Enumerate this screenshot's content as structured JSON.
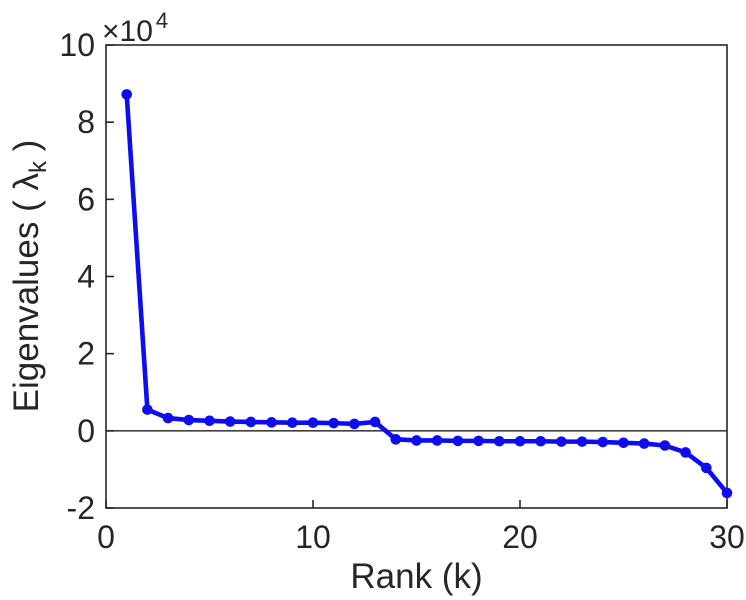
{
  "figure": {
    "background": "#ffffff",
    "axis_color": "#262626",
    "tick_label_color": "#262626",
    "line_color": "#0d0df0",
    "zero_line_color": "#404040",
    "xlabel": "Rank (k)",
    "ylabel_prefix": "Eigenvalues ( ",
    "ylabel_lambda": "λ",
    "ylabel_sub": "k",
    "ylabel_suffix": " )",
    "multiplier_base": "×10",
    "multiplier_exp": "4"
  },
  "chart_data": {
    "type": "line",
    "title": "",
    "xlabel": "Rank (k)",
    "ylabel": "Eigenvalues ( λ_k )",
    "y_axis_multiplier_label": "×10^4",
    "grid": false,
    "legend_position": "none",
    "box": true,
    "marker": "filled-circle",
    "zero_reference_line": true,
    "xlim": [
      0,
      30
    ],
    "ylim_e4": [
      -2,
      10
    ],
    "xticks": [
      0,
      10,
      20,
      30
    ],
    "xtick_labels": [
      "0",
      "10",
      "20",
      "30"
    ],
    "ytick_values_e4": [
      -2,
      0,
      2,
      4,
      6,
      8,
      10
    ],
    "ytick_labels": [
      "-2",
      "0",
      "2",
      "4",
      "6",
      "8",
      "10"
    ],
    "series": [
      {
        "name": "eigenvalues",
        "color": "#0d0df0",
        "x": [
          1,
          2,
          3,
          4,
          5,
          6,
          7,
          8,
          9,
          10,
          11,
          12,
          13,
          14,
          15,
          16,
          17,
          18,
          19,
          20,
          21,
          22,
          23,
          24,
          25,
          26,
          27,
          28,
          29,
          30
        ],
        "y_e4": [
          8.72,
          0.55,
          0.33,
          0.28,
          0.26,
          0.24,
          0.23,
          0.22,
          0.21,
          0.21,
          0.2,
          0.18,
          0.23,
          -0.22,
          -0.25,
          -0.25,
          -0.26,
          -0.26,
          -0.27,
          -0.27,
          -0.27,
          -0.28,
          -0.28,
          -0.29,
          -0.31,
          -0.33,
          -0.38,
          -0.56,
          -0.96,
          -1.61
        ]
      }
    ]
  }
}
